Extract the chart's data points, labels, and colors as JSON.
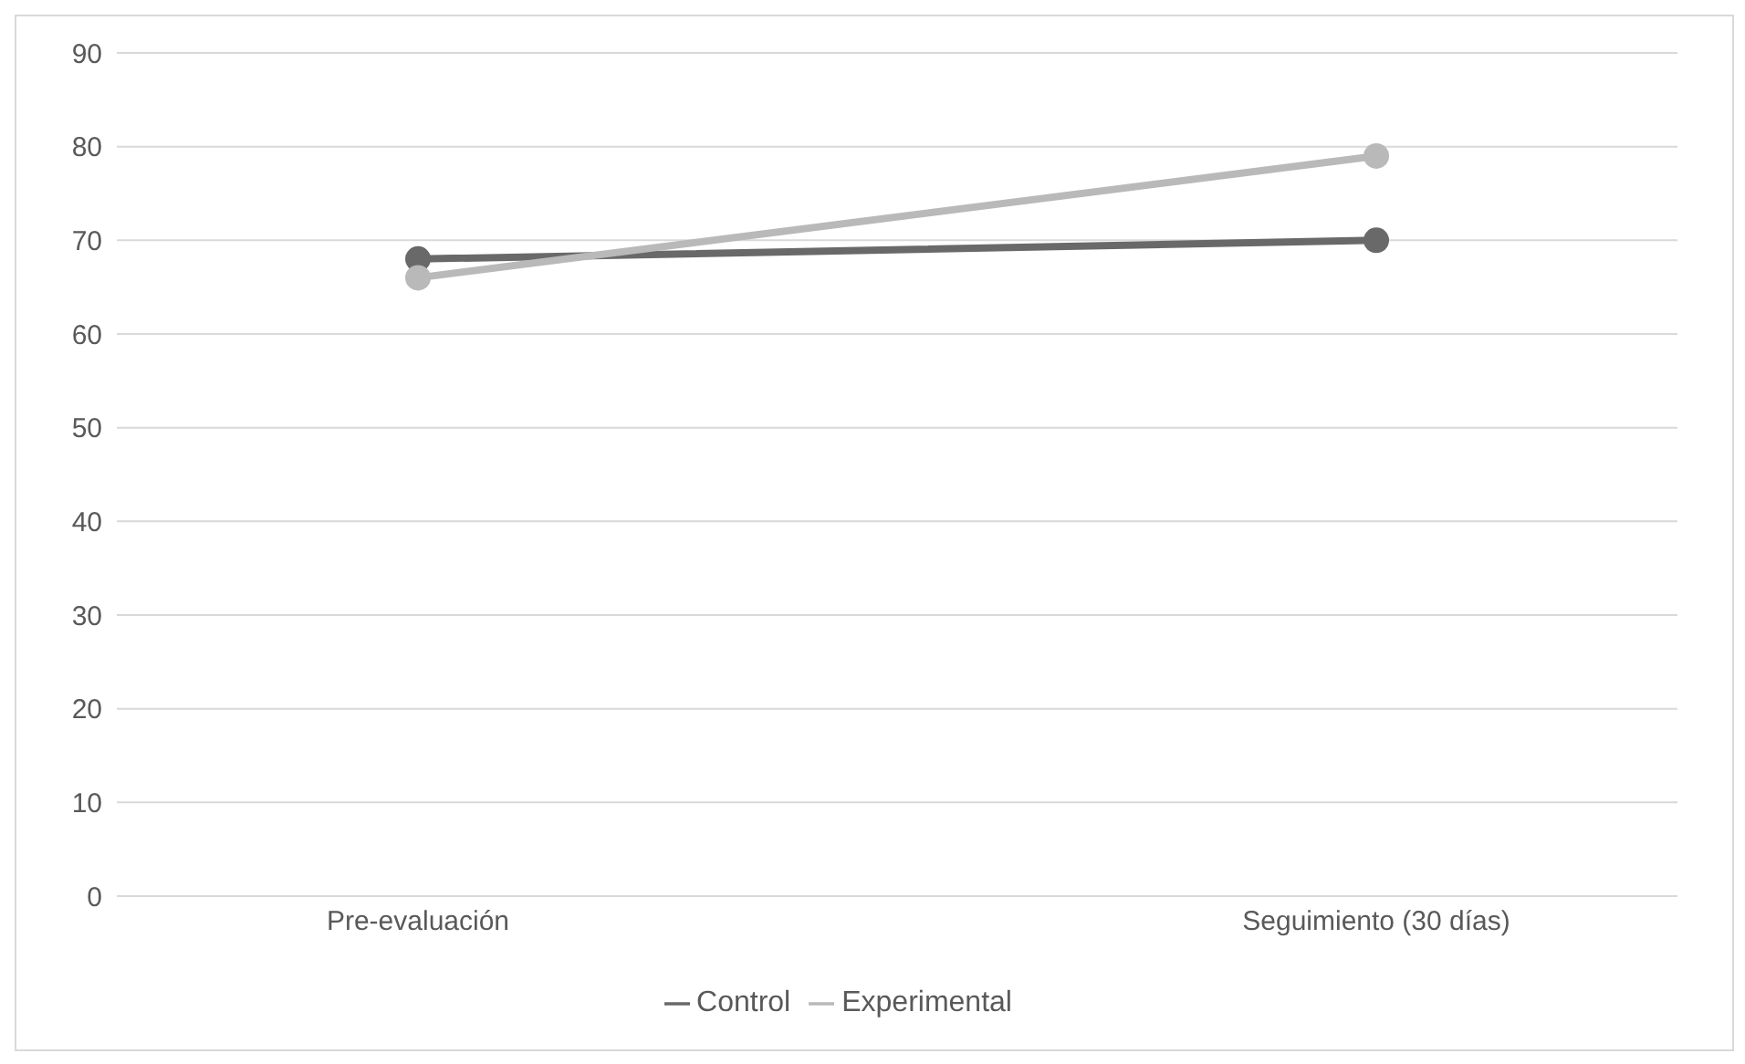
{
  "chart_data": {
    "type": "line",
    "categories": [
      "Pre-evaluación",
      "Seguimiento (30 días)"
    ],
    "series": [
      {
        "name": "Control",
        "color": "#696969",
        "values": [
          68,
          70
        ]
      },
      {
        "name": "Experimental",
        "color": "#b9b9b9",
        "values": [
          66,
          79
        ]
      }
    ],
    "ylim": [
      0,
      90
    ],
    "yticks": [
      0,
      10,
      20,
      30,
      40,
      50,
      60,
      70,
      80,
      90
    ],
    "grid": "y",
    "legend": "bottom",
    "marker": "circle",
    "line_style": "solid"
  }
}
